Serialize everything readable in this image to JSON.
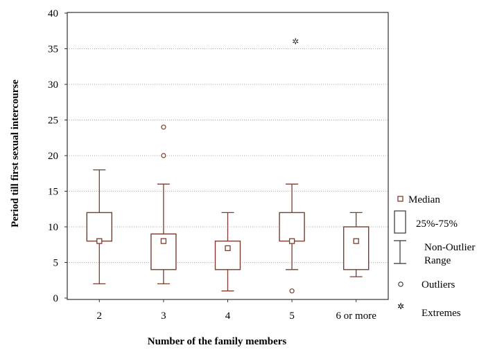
{
  "chart_data": {
    "type": "boxplot",
    "xlabel": "Number of the family members",
    "ylabel": "Period till first sexual intercourse",
    "ylim": [
      0,
      40
    ],
    "yticks": [
      0,
      5,
      10,
      15,
      20,
      25,
      30,
      35,
      40
    ],
    "grid": "horizontal dotted",
    "categories": [
      "2",
      "3",
      "4",
      "5",
      "6 or more"
    ],
    "boxes": [
      {
        "category": "2",
        "median": 8,
        "q1": 8,
        "q3": 12,
        "whisker_low": 2,
        "whisker_high": 18,
        "outliers": [],
        "extremes": []
      },
      {
        "category": "3",
        "median": 8,
        "q1": 4,
        "q3": 9,
        "whisker_low": 2,
        "whisker_high": 16,
        "outliers": [
          20,
          24
        ],
        "extremes": []
      },
      {
        "category": "4",
        "median": 7,
        "q1": 4,
        "q3": 8,
        "whisker_low": 1,
        "whisker_high": 12,
        "outliers": [],
        "extremes": []
      },
      {
        "category": "5",
        "median": 8,
        "q1": 8,
        "q3": 12,
        "whisker_low": 4,
        "whisker_high": 16,
        "outliers": [
          1
        ],
        "extremes": [
          36
        ]
      },
      {
        "category": "6 or more",
        "median": 8,
        "q1": 4,
        "q3": 10,
        "whisker_low": 3,
        "whisker_high": 12,
        "outliers": [],
        "extremes": []
      }
    ],
    "legend": {
      "placement": "right",
      "items": [
        {
          "key": "median",
          "label": "Median"
        },
        {
          "key": "box",
          "label": "25%-75%"
        },
        {
          "key": "range",
          "label": "Non-Outlier Range",
          "lines": [
            "Non-Outlier",
            "Range"
          ]
        },
        {
          "key": "outliers",
          "label": "Outliers"
        },
        {
          "key": "extremes",
          "label": "Extremes"
        }
      ]
    },
    "colors": {
      "box": "#7b3b2e",
      "grid": "#a8a8a8",
      "axis": "#333333"
    }
  }
}
